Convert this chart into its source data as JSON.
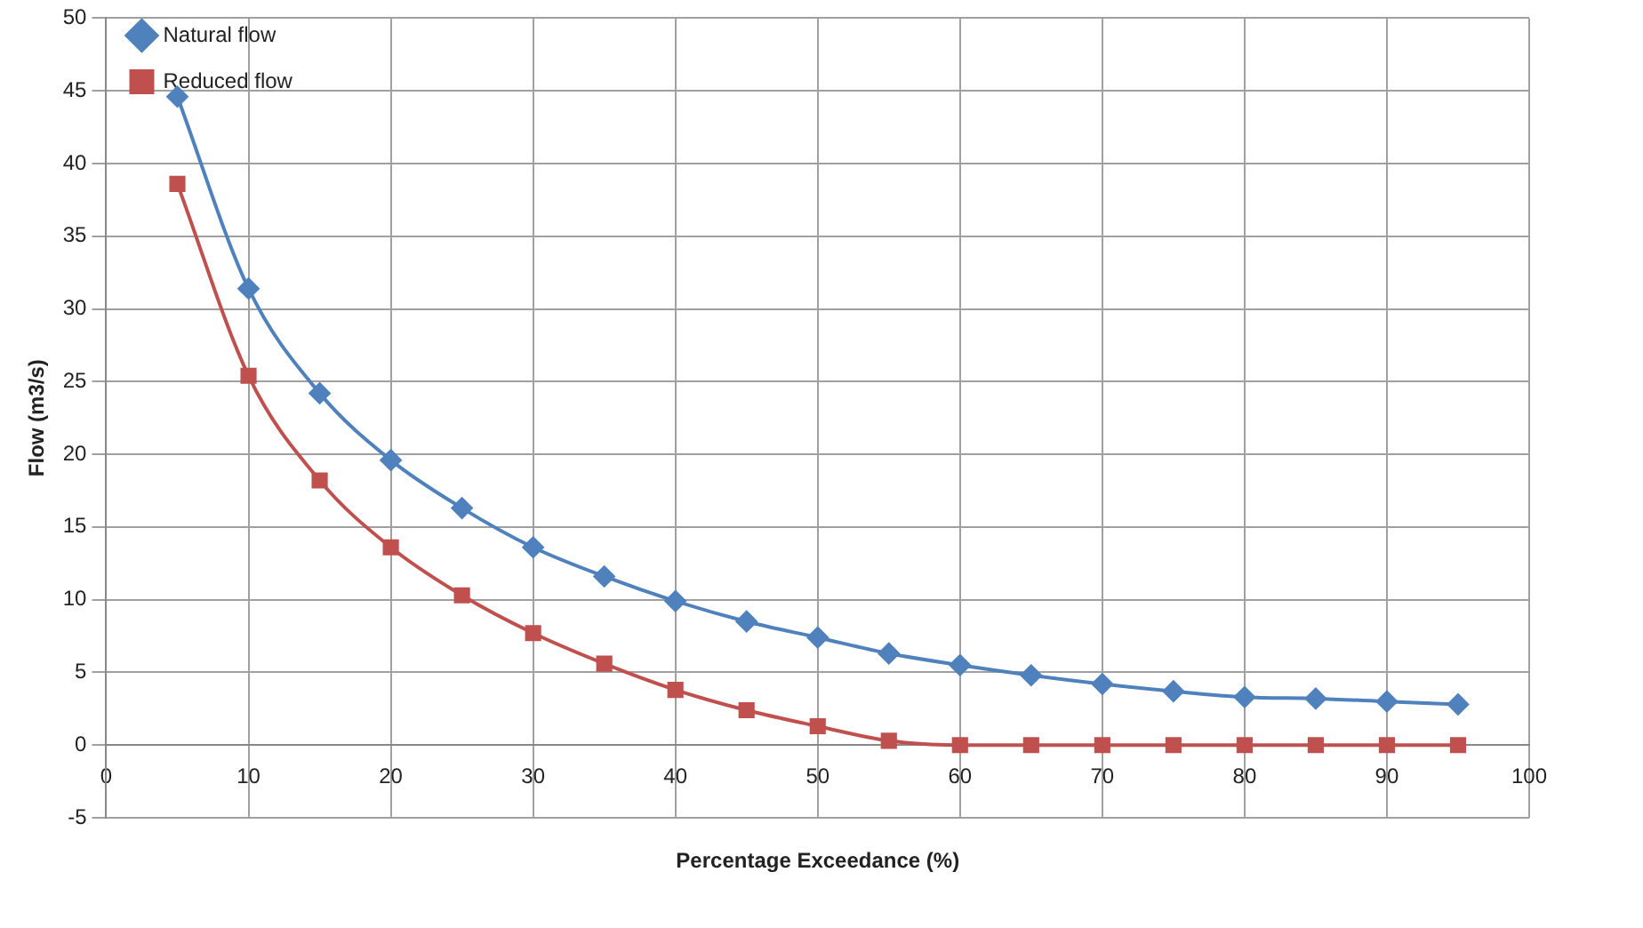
{
  "chart_data": {
    "type": "line",
    "xlabel": "Percentage Exceedance (%)",
    "ylabel": "Flow (m3/s)",
    "x": [
      5,
      10,
      15,
      20,
      25,
      30,
      35,
      40,
      45,
      50,
      55,
      60,
      65,
      70,
      75,
      80,
      85,
      90,
      95
    ],
    "series": [
      {
        "name": "Natural flow",
        "color": "#4f81bd",
        "marker": "diamond",
        "values": [
          44.6,
          31.4,
          24.2,
          19.6,
          16.3,
          13.6,
          11.6,
          9.9,
          8.5,
          7.4,
          6.3,
          5.5,
          4.8,
          4.2,
          3.7,
          3.3,
          3.2,
          3.0,
          2.8
        ]
      },
      {
        "name": "Reduced flow",
        "color": "#c0504d",
        "marker": "square",
        "values": [
          38.6,
          25.4,
          18.2,
          13.6,
          10.3,
          7.7,
          5.6,
          3.8,
          2.4,
          1.3,
          0.3,
          0,
          0,
          0,
          0,
          0,
          0,
          0,
          0
        ]
      }
    ],
    "xlim": [
      0,
      100
    ],
    "xticks": [
      0,
      10,
      20,
      30,
      40,
      50,
      60,
      70,
      80,
      90,
      100
    ],
    "ylim": [
      -5,
      50
    ],
    "yticks": [
      -5,
      0,
      5,
      10,
      15,
      20,
      25,
      30,
      35,
      40,
      45,
      50
    ],
    "grid": true,
    "legend": "top left"
  }
}
